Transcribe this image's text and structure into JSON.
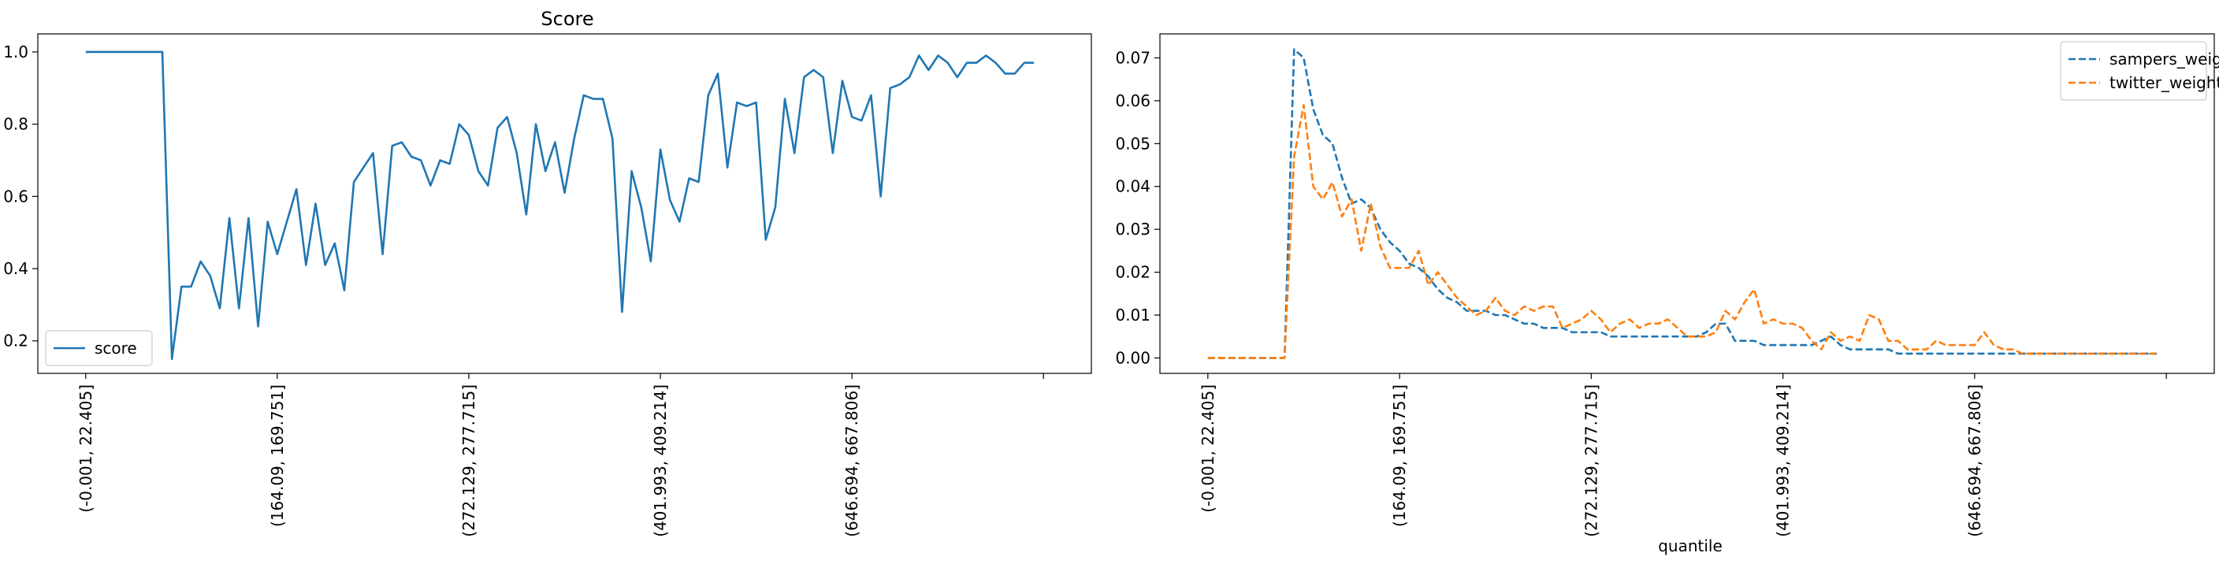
{
  "chart_data": [
    {
      "type": "line",
      "title": "Score",
      "xlabel": "",
      "ylabel": "",
      "ylim": [
        0.11,
        1.05
      ],
      "yticks": [
        0.2,
        0.4,
        0.6,
        0.8,
        1.0
      ],
      "ytick_labels": [
        "0.2",
        "0.4",
        "0.6",
        "0.8",
        "1.0"
      ],
      "xlim": [
        -5,
        105
      ],
      "xticks": [
        0,
        20,
        40,
        60,
        80,
        100
      ],
      "xtick_labels": [
        "(-0.001, 22.405]",
        "(164.09, 169.751]",
        "(272.129, 277.715]",
        "(401.993, 409.214]",
        "(646.694, 667.806]",
        ""
      ],
      "grid": false,
      "legend": {
        "position": "lower-left",
        "entries": [
          "score"
        ]
      },
      "series": [
        {
          "name": "score",
          "color": "#1f77b4",
          "style": "solid",
          "values": [
            1.0,
            1.0,
            1.0,
            1.0,
            1.0,
            1.0,
            1.0,
            1.0,
            1.0,
            0.15,
            0.35,
            0.35,
            0.42,
            0.38,
            0.29,
            0.54,
            0.29,
            0.54,
            0.24,
            0.53,
            0.44,
            0.53,
            0.62,
            0.41,
            0.58,
            0.41,
            0.47,
            0.34,
            0.64,
            0.68,
            0.72,
            0.44,
            0.74,
            0.75,
            0.71,
            0.7,
            0.63,
            0.7,
            0.69,
            0.8,
            0.77,
            0.67,
            0.63,
            0.79,
            0.82,
            0.72,
            0.55,
            0.8,
            0.67,
            0.75,
            0.61,
            0.76,
            0.88,
            0.87,
            0.87,
            0.76,
            0.28,
            0.67,
            0.57,
            0.42,
            0.73,
            0.59,
            0.53,
            0.65,
            0.64,
            0.88,
            0.94,
            0.68,
            0.86,
            0.85,
            0.86,
            0.48,
            0.57,
            0.87,
            0.72,
            0.93,
            0.95,
            0.93,
            0.72,
            0.92,
            0.82,
            0.81,
            0.88,
            0.6,
            0.9,
            0.91,
            0.93,
            0.99,
            0.95,
            0.99,
            0.97,
            0.93,
            0.97,
            0.97,
            0.99,
            0.97,
            0.94,
            0.94,
            0.97,
            0.97
          ]
        }
      ]
    },
    {
      "type": "line",
      "title": "",
      "xlabel": "quantile",
      "ylabel": "",
      "ylim": [
        -0.0036,
        0.0756
      ],
      "yticks": [
        0.0,
        0.01,
        0.02,
        0.03,
        0.04,
        0.05,
        0.06,
        0.07
      ],
      "ytick_labels": [
        "0.00",
        "0.01",
        "0.02",
        "0.03",
        "0.04",
        "0.05",
        "0.06",
        "0.07"
      ],
      "xlim": [
        -5,
        105
      ],
      "xticks": [
        0,
        20,
        40,
        60,
        80,
        100
      ],
      "xtick_labels": [
        "(-0.001, 22.405]",
        "(164.09, 169.751]",
        "(272.129, 277.715]",
        "(401.993, 409.214]",
        "(646.694, 667.806]",
        ""
      ],
      "grid": false,
      "legend": {
        "position": "top-right",
        "entries": [
          "sampers_weight",
          "twitter_weight"
        ]
      },
      "series": [
        {
          "name": "sampers_weight",
          "color": "#1f77b4",
          "style": "dashed",
          "values": [
            0.0,
            0.0,
            0.0,
            0.0,
            0.0,
            0.0,
            0.0,
            0.0,
            0.0,
            0.072,
            0.07,
            0.058,
            0.052,
            0.05,
            0.042,
            0.036,
            0.037,
            0.035,
            0.03,
            0.027,
            0.025,
            0.022,
            0.021,
            0.019,
            0.016,
            0.014,
            0.013,
            0.011,
            0.011,
            0.011,
            0.01,
            0.01,
            0.009,
            0.008,
            0.008,
            0.007,
            0.007,
            0.007,
            0.006,
            0.006,
            0.006,
            0.006,
            0.005,
            0.005,
            0.005,
            0.005,
            0.005,
            0.005,
            0.005,
            0.005,
            0.005,
            0.005,
            0.006,
            0.008,
            0.008,
            0.004,
            0.004,
            0.004,
            0.003,
            0.003,
            0.003,
            0.003,
            0.003,
            0.003,
            0.004,
            0.005,
            0.003,
            0.002,
            0.002,
            0.002,
            0.002,
            0.002,
            0.001,
            0.001,
            0.001,
            0.001,
            0.001,
            0.001,
            0.001,
            0.001,
            0.001,
            0.001,
            0.001,
            0.001,
            0.001,
            0.001,
            0.001,
            0.001,
            0.001,
            0.001,
            0.001,
            0.001,
            0.001,
            0.001,
            0.001,
            0.001,
            0.001,
            0.001,
            0.001,
            0.001
          ]
        },
        {
          "name": "twitter_weight",
          "color": "#ff7f0e",
          "style": "dashed",
          "values": [
            0.0,
            0.0,
            0.0,
            0.0,
            0.0,
            0.0,
            0.0,
            0.0,
            0.0,
            0.047,
            0.059,
            0.04,
            0.037,
            0.041,
            0.033,
            0.037,
            0.025,
            0.036,
            0.026,
            0.021,
            0.021,
            0.021,
            0.025,
            0.017,
            0.02,
            0.017,
            0.014,
            0.012,
            0.01,
            0.011,
            0.014,
            0.011,
            0.01,
            0.012,
            0.011,
            0.012,
            0.012,
            0.007,
            0.008,
            0.009,
            0.011,
            0.009,
            0.006,
            0.008,
            0.009,
            0.007,
            0.008,
            0.008,
            0.009,
            0.007,
            0.005,
            0.005,
            0.005,
            0.006,
            0.011,
            0.009,
            0.013,
            0.016,
            0.008,
            0.009,
            0.008,
            0.008,
            0.007,
            0.004,
            0.002,
            0.006,
            0.004,
            0.005,
            0.004,
            0.01,
            0.009,
            0.004,
            0.004,
            0.002,
            0.002,
            0.002,
            0.004,
            0.003,
            0.003,
            0.003,
            0.003,
            0.006,
            0.003,
            0.002,
            0.002,
            0.001,
            0.001,
            0.001,
            0.001,
            0.001,
            0.001,
            0.001,
            0.001,
            0.001,
            0.001,
            0.001,
            0.001,
            0.001,
            0.001,
            0.001
          ]
        }
      ]
    }
  ]
}
